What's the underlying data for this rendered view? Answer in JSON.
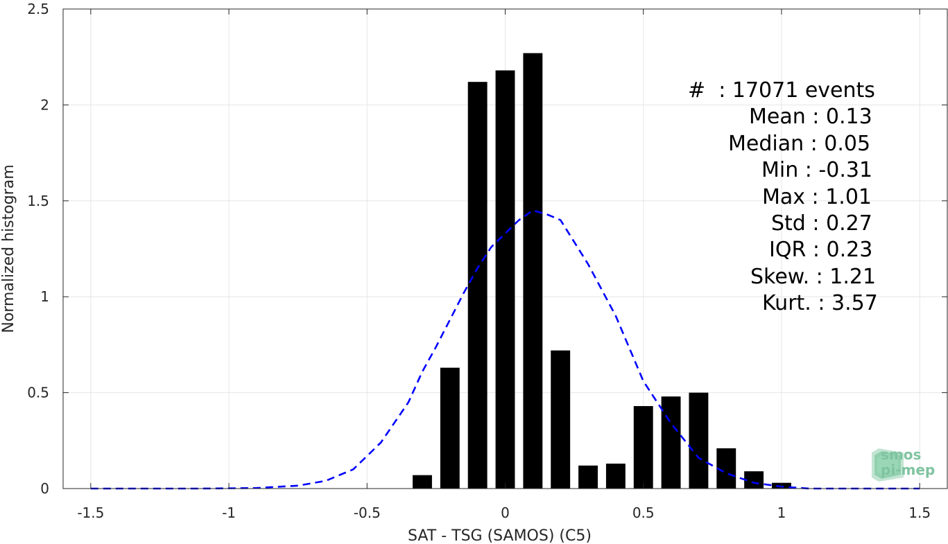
{
  "chart_data": {
    "type": "bar",
    "xlabel": "SAT - TSG (SAMOS) (C5)",
    "ylabel": "Normalized histogram",
    "xlim": [
      -1.6,
      1.6
    ],
    "ylim": [
      0,
      2.5
    ],
    "xticks": [
      -1.5,
      -1,
      -0.5,
      0,
      0.5,
      1,
      1.5
    ],
    "xtick_labels": [
      "-1.5",
      "-1",
      "-0.5",
      "0",
      "0.5",
      "1",
      "1.5"
    ],
    "yticks": [
      0,
      0.5,
      1,
      1.5,
      2,
      2.5
    ],
    "ytick_labels": [
      "0",
      "0.5",
      "1",
      "1.5",
      "2",
      "2.5"
    ],
    "grid": true,
    "bar_color": "#000000",
    "bar_width": 0.07,
    "bars": {
      "x": [
        -0.3,
        -0.2,
        -0.1,
        0.0,
        0.1,
        0.2,
        0.3,
        0.4,
        0.5,
        0.6,
        0.7,
        0.8,
        0.9,
        1.0
      ],
      "values": [
        0.07,
        0.63,
        2.12,
        2.18,
        2.27,
        0.72,
        0.12,
        0.13,
        0.43,
        0.48,
        0.5,
        0.21,
        0.09,
        0.03
      ]
    },
    "fit_curve": {
      "style": "dashed",
      "color": "#0000ff",
      "x": [
        -1.5,
        -1.3,
        -1.1,
        -0.9,
        -0.75,
        -0.65,
        -0.55,
        -0.45,
        -0.35,
        -0.3,
        -0.25,
        -0.2,
        -0.15,
        -0.1,
        -0.05,
        0.0,
        0.05,
        0.1,
        0.15,
        0.2,
        0.3,
        0.4,
        0.5,
        0.6,
        0.7,
        0.8,
        0.9,
        1.0,
        1.1,
        1.2,
        1.3,
        1.5
      ],
      "y": [
        0.0,
        0.0,
        0.0,
        0.003,
        0.015,
        0.04,
        0.1,
        0.24,
        0.45,
        0.61,
        0.74,
        0.88,
        1.02,
        1.15,
        1.26,
        1.33,
        1.4,
        1.45,
        1.43,
        1.4,
        1.17,
        0.9,
        0.56,
        0.34,
        0.16,
        0.08,
        0.03,
        0.01,
        0.0,
        0.0,
        0.0,
        0.0
      ]
    },
    "stats": [
      "#  : 17071 events",
      "Mean : 0.13",
      "Median : 0.05",
      "Min : -0.31",
      "Max : 1.01",
      "Std : 0.27",
      "IQR : 0.23",
      "Skew. : 1.21",
      "Kurt. : 3.57"
    ]
  },
  "logo": {
    "line1": "smos",
    "line2": "pi-mep",
    "color": "#7fc3a0"
  }
}
